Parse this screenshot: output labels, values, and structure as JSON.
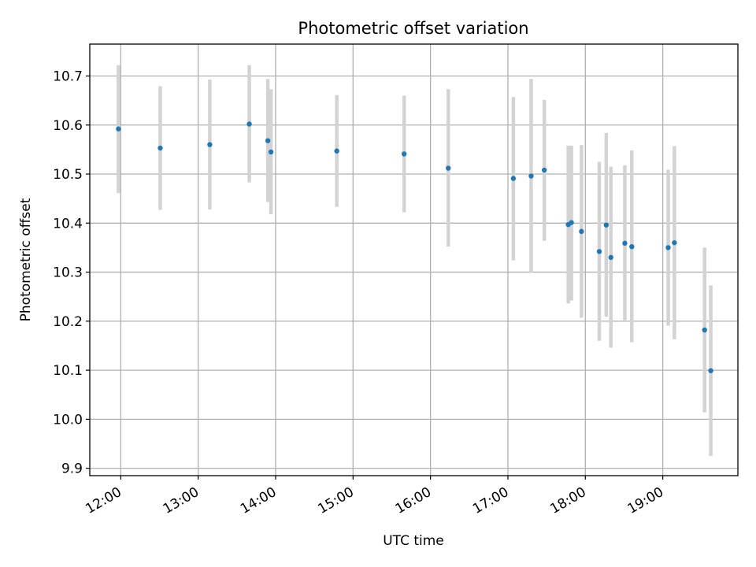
{
  "chart_data": {
    "type": "scatter",
    "title": "Photometric offset variation",
    "xlabel": "UTC time",
    "ylabel": "Photometric offset",
    "grid": true,
    "x_unit": "hour of day (UTC)",
    "xlim": [
      11.6,
      19.97
    ],
    "ylim": [
      9.885,
      10.765
    ],
    "x_ticks": [
      {
        "value": 12,
        "label": "12:00"
      },
      {
        "value": 13,
        "label": "13:00"
      },
      {
        "value": 14,
        "label": "14:00"
      },
      {
        "value": 15,
        "label": "15:00"
      },
      {
        "value": 16,
        "label": "16:00"
      },
      {
        "value": 17,
        "label": "17:00"
      },
      {
        "value": 18,
        "label": "18:00"
      },
      {
        "value": 19,
        "label": "19:00"
      }
    ],
    "y_ticks": [
      {
        "value": 9.9,
        "label": "9.9"
      },
      {
        "value": 10.0,
        "label": "10.0"
      },
      {
        "value": 10.1,
        "label": "10.1"
      },
      {
        "value": 10.2,
        "label": "10.2"
      },
      {
        "value": 10.3,
        "label": "10.3"
      },
      {
        "value": 10.4,
        "label": "10.4"
      },
      {
        "value": 10.5,
        "label": "10.5"
      },
      {
        "value": 10.6,
        "label": "10.6"
      },
      {
        "value": 10.7,
        "label": "10.7"
      }
    ],
    "marker_color": "#1f77b4",
    "errorbar_color": "#d3d3d3",
    "points": [
      {
        "x": 11.97,
        "y": 10.592,
        "ylo": 10.461,
        "yhi": 10.722
      },
      {
        "x": 12.51,
        "y": 10.553,
        "ylo": 10.427,
        "yhi": 10.679
      },
      {
        "x": 13.15,
        "y": 10.56,
        "ylo": 10.428,
        "yhi": 10.693
      },
      {
        "x": 13.66,
        "y": 10.602,
        "ylo": 10.483,
        "yhi": 10.722
      },
      {
        "x": 13.9,
        "y": 10.568,
        "ylo": 10.443,
        "yhi": 10.694
      },
      {
        "x": 13.94,
        "y": 10.545,
        "ylo": 10.418,
        "yhi": 10.673
      },
      {
        "x": 14.79,
        "y": 10.547,
        "ylo": 10.433,
        "yhi": 10.661
      },
      {
        "x": 15.66,
        "y": 10.541,
        "ylo": 10.422,
        "yhi": 10.66
      },
      {
        "x": 16.23,
        "y": 10.512,
        "ylo": 10.352,
        "yhi": 10.673
      },
      {
        "x": 17.07,
        "y": 10.491,
        "ylo": 10.324,
        "yhi": 10.657
      },
      {
        "x": 17.3,
        "y": 10.496,
        "ylo": 10.3,
        "yhi": 10.694
      },
      {
        "x": 17.47,
        "y": 10.508,
        "ylo": 10.364,
        "yhi": 10.651
      },
      {
        "x": 17.78,
        "y": 10.397,
        "ylo": 10.236,
        "yhi": 10.558
      },
      {
        "x": 17.82,
        "y": 10.401,
        "ylo": 10.242,
        "yhi": 10.558
      },
      {
        "x": 17.95,
        "y": 10.383,
        "ylo": 10.207,
        "yhi": 10.559
      },
      {
        "x": 18.18,
        "y": 10.342,
        "ylo": 10.16,
        "yhi": 10.525
      },
      {
        "x": 18.27,
        "y": 10.396,
        "ylo": 10.209,
        "yhi": 10.584
      },
      {
        "x": 18.33,
        "y": 10.33,
        "ylo": 10.146,
        "yhi": 10.515
      },
      {
        "x": 18.51,
        "y": 10.359,
        "ylo": 10.202,
        "yhi": 10.518
      },
      {
        "x": 18.6,
        "y": 10.352,
        "ylo": 10.157,
        "yhi": 10.548
      },
      {
        "x": 19.07,
        "y": 10.35,
        "ylo": 10.191,
        "yhi": 10.509
      },
      {
        "x": 19.15,
        "y": 10.36,
        "ylo": 10.163,
        "yhi": 10.557
      },
      {
        "x": 19.54,
        "y": 10.182,
        "ylo": 10.014,
        "yhi": 10.35
      },
      {
        "x": 19.62,
        "y": 10.099,
        "ylo": 9.925,
        "yhi": 10.273
      }
    ]
  }
}
